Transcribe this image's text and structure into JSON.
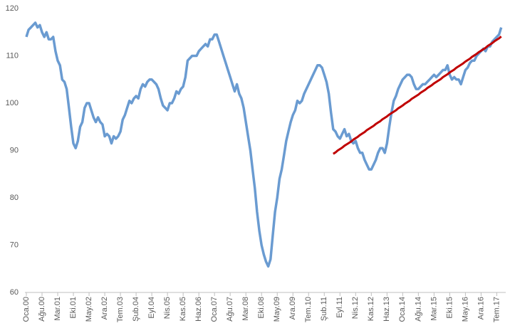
{
  "chart_data": {
    "type": "line",
    "categories": [
      "Oca.00",
      null,
      null,
      null,
      null,
      null,
      null,
      "Ağu.00",
      null,
      null,
      null,
      null,
      null,
      null,
      "Mar.01",
      null,
      null,
      null,
      null,
      null,
      null,
      "Eki.01",
      null,
      null,
      null,
      null,
      null,
      null,
      "May.02",
      null,
      null,
      null,
      null,
      null,
      null,
      "Ara.02",
      null,
      null,
      null,
      null,
      null,
      null,
      "Tem.03",
      null,
      null,
      null,
      null,
      null,
      null,
      "Şub.04",
      null,
      null,
      null,
      null,
      null,
      null,
      "Eyl.04",
      null,
      null,
      null,
      null,
      null,
      null,
      "Nis.05",
      null,
      null,
      null,
      null,
      null,
      null,
      "Kas.05",
      null,
      null,
      null,
      null,
      null,
      null,
      "Haz.06",
      null,
      null,
      null,
      null,
      null,
      null,
      "Oca.07",
      null,
      null,
      null,
      null,
      null,
      null,
      "Ağu.07",
      null,
      null,
      null,
      null,
      null,
      null,
      "Mar.08",
      null,
      null,
      null,
      null,
      null,
      null,
      "Eki.08",
      null,
      null,
      null,
      null,
      null,
      null,
      "May.09",
      null,
      null,
      null,
      null,
      null,
      null,
      "Ara.09",
      null,
      null,
      null,
      null,
      null,
      null,
      "Tem.10",
      null,
      null,
      null,
      null,
      null,
      null,
      "Şub.11",
      null,
      null,
      null,
      null,
      null,
      null,
      "Eyl.11",
      null,
      null,
      null,
      null,
      null,
      null,
      "Nis.12",
      null,
      null,
      null,
      null,
      null,
      null,
      "Kas.12",
      null,
      null,
      null,
      null,
      null,
      null,
      "Haz.13",
      null,
      null,
      null,
      null,
      null,
      null,
      "Oca.14",
      null,
      null,
      null,
      null,
      null,
      null,
      "Ağu.14",
      null,
      null,
      null,
      null,
      null,
      null,
      "Mar.15",
      null,
      null,
      null,
      null,
      null,
      null,
      "Eki.15",
      null,
      null,
      null,
      null,
      null,
      null,
      "May.16",
      null,
      null,
      null,
      null,
      null,
      null,
      "Ara.16",
      null,
      null,
      null,
      null,
      null,
      null,
      "Tem.17",
      null,
      null
    ],
    "series": [
      {
        "color": "#6a9bd1",
        "values": [
          114,
          115.5,
          116,
          116.5,
          117,
          116,
          116.5,
          115,
          114,
          115,
          113.5,
          113.5,
          114,
          111,
          109,
          108,
          105,
          104.5,
          103,
          99,
          95,
          91.5,
          90.5,
          92,
          95,
          96,
          99,
          100,
          100,
          98.5,
          97,
          96,
          97,
          96,
          95.5,
          93,
          93.5,
          93,
          91.5,
          93,
          92.5,
          93,
          94,
          96.5,
          97.5,
          99,
          100.5,
          100,
          101,
          101.5,
          101,
          103,
          104,
          103.5,
          104.5,
          105,
          105,
          104.5,
          104,
          103,
          101,
          99.5,
          99,
          98.5,
          100,
          100,
          101,
          102.5,
          102,
          103,
          103.5,
          105.5,
          109,
          109.5,
          110,
          110,
          110,
          111,
          111.5,
          112,
          112.5,
          112,
          113.5,
          113.5,
          114.5,
          114.5,
          113,
          111.5,
          110,
          108.5,
          107,
          105.5,
          104,
          102.5,
          104,
          102,
          101,
          99,
          96,
          93,
          90,
          86,
          82,
          77,
          73,
          70,
          68,
          66.5,
          65.5,
          67,
          72,
          77,
          80,
          84,
          86,
          89,
          92,
          94,
          96,
          97.5,
          98.5,
          100.5,
          100,
          100.5,
          102,
          103,
          104,
          105,
          106,
          107,
          108,
          108,
          107.5,
          106,
          104.5,
          102,
          98,
          94.5,
          94,
          93,
          92.5,
          93.5,
          94.5,
          93,
          93.5,
          92,
          91.5,
          92,
          90.5,
          89.5,
          89.5,
          88,
          87,
          86,
          86,
          87,
          88,
          89.5,
          90.5,
          90.5,
          89.5,
          91.5,
          95,
          98,
          100.5,
          101.5,
          103,
          104,
          105,
          105.5,
          106,
          106,
          105.5,
          104,
          103,
          103,
          103.5,
          104,
          104,
          104.5,
          105,
          105.5,
          106,
          105.5,
          106,
          106.5,
          107,
          107,
          108,
          106,
          105,
          105.5,
          105,
          105,
          104,
          105.5,
          107,
          107.5,
          108.5,
          109,
          109,
          110,
          110.5,
          111,
          111.5,
          111,
          112,
          112,
          113,
          113.5,
          114,
          114.5,
          116
        ]
      },
      {
        "color": "#c00000",
        "values": [
          null,
          null,
          null,
          null,
          null,
          null,
          null,
          null,
          null,
          null,
          null,
          null,
          null,
          null,
          null,
          null,
          null,
          null,
          null,
          null,
          null,
          null,
          null,
          null,
          null,
          null,
          null,
          null,
          null,
          null,
          null,
          null,
          null,
          null,
          null,
          null,
          null,
          null,
          null,
          null,
          null,
          null,
          null,
          null,
          null,
          null,
          null,
          null,
          null,
          null,
          null,
          null,
          null,
          null,
          null,
          null,
          null,
          null,
          null,
          null,
          null,
          null,
          null,
          null,
          null,
          null,
          null,
          null,
          null,
          null,
          null,
          null,
          null,
          null,
          null,
          null,
          null,
          null,
          null,
          null,
          null,
          null,
          null,
          null,
          null,
          null,
          null,
          null,
          null,
          null,
          null,
          null,
          null,
          null,
          null,
          null,
          null,
          null,
          null,
          null,
          null,
          null,
          null,
          null,
          null,
          null,
          null,
          null,
          null,
          null,
          null,
          null,
          null,
          null,
          null,
          null,
          null,
          null,
          null,
          null,
          null,
          null,
          null,
          null,
          null,
          null,
          null,
          null,
          null,
          null,
          null,
          null,
          null,
          null,
          null,
          null,
          null,
          89.3,
          89.6,
          90.0,
          90.3,
          90.6,
          91.0,
          91.3,
          91.6,
          91.9,
          92.3,
          92.6,
          92.9,
          93.3,
          93.6,
          93.9,
          94.3,
          94.6,
          94.9,
          95.2,
          95.6,
          95.9,
          96.2,
          96.6,
          96.9,
          97.2,
          97.6,
          97.9,
          98.2,
          98.5,
          98.9,
          99.2,
          99.5,
          99.9,
          100.2,
          100.5,
          100.9,
          101.2,
          101.5,
          101.8,
          102.2,
          102.5,
          102.8,
          103.2,
          103.5,
          103.8,
          104.2,
          104.5,
          104.8,
          105.1,
          105.5,
          105.8,
          106.1,
          106.5,
          106.8,
          107.1,
          107.5,
          107.8,
          108.1,
          108.4,
          108.8,
          109.1,
          109.4,
          109.8,
          110.1,
          110.4,
          110.8,
          111.1,
          111.4,
          111.7,
          112.1,
          112.4,
          112.7,
          113.1,
          113.4,
          113.7,
          114.1
        ]
      }
    ],
    "ylim": [
      60,
      120
    ],
    "yticks": [
      60,
      70,
      80,
      90,
      100,
      110,
      120
    ],
    "grid": false
  }
}
